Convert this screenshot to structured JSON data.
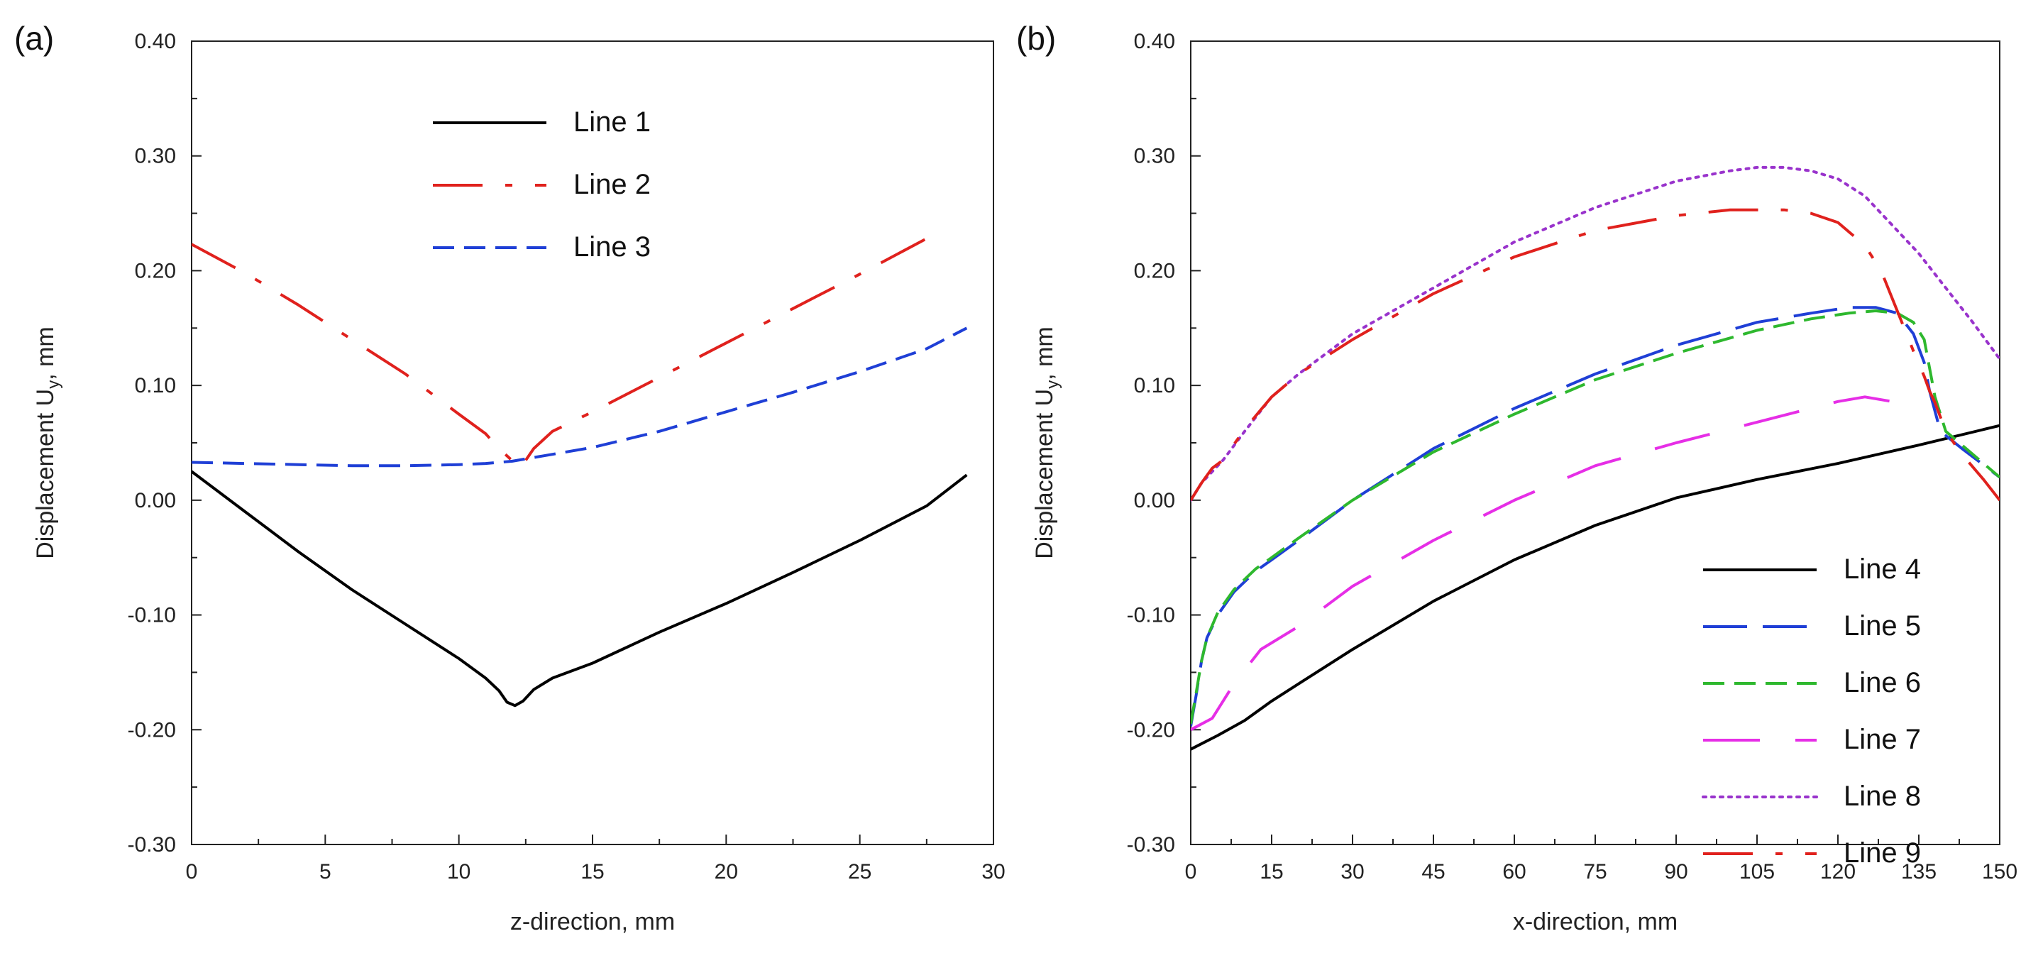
{
  "chart_data": [
    {
      "type": "line",
      "panel_label": "(a)",
      "xlabel": "z-direction, mm",
      "ylabel": "Displacement U",
      "ylabel_sub": "y",
      "ylabel_unit": ", mm",
      "xlim": [
        0,
        30
      ],
      "ylim": [
        -0.3,
        0.4
      ],
      "xticks": [
        0,
        5,
        10,
        15,
        20,
        25,
        30
      ],
      "xtick_labels": [
        "0",
        "5",
        "10",
        "15",
        "20",
        "25",
        "30"
      ],
      "yticks": [
        -0.3,
        -0.2,
        -0.1,
        0.0,
        0.1,
        0.2,
        0.3,
        0.4
      ],
      "ytick_labels": [
        "-0.30",
        "-0.20",
        "-0.10",
        "0.00",
        "0.10",
        "0.20",
        "0.30",
        "0.40"
      ],
      "grid": false,
      "legend_position": "top-center",
      "series": [
        {
          "name": "Line 1",
          "color": "#000000",
          "dash": "solid",
          "x": [
            0,
            2,
            4,
            6,
            8,
            10,
            11,
            11.5,
            11.8,
            12.1,
            12.4,
            12.8,
            13.5,
            15,
            17.5,
            20,
            22.5,
            25,
            27.5,
            29
          ],
          "y": [
            0.025,
            -0.01,
            -0.045,
            -0.078,
            -0.108,
            -0.138,
            -0.155,
            -0.166,
            -0.176,
            -0.179,
            -0.175,
            -0.165,
            -0.155,
            -0.142,
            -0.115,
            -0.09,
            -0.063,
            -0.035,
            -0.005,
            0.022
          ]
        },
        {
          "name": "Line 2",
          "color": "#e0211d",
          "dash": "long-dash-dot",
          "x": [
            0,
            2,
            4,
            6,
            8,
            10,
            11,
            11.5,
            12.3,
            12.8,
            13.5,
            15,
            17.5,
            20,
            22.5,
            25,
            27.5
          ],
          "y": [
            0.223,
            0.198,
            0.17,
            0.14,
            0.11,
            0.075,
            0.058,
            0.045,
            0.028,
            0.045,
            0.06,
            0.077,
            0.107,
            0.137,
            0.167,
            0.197,
            0.228
          ]
        },
        {
          "name": "Line 3",
          "color": "#1f3fd6",
          "dash": "dash",
          "x": [
            0,
            2,
            4,
            6,
            8,
            10,
            11,
            12,
            13,
            15,
            17.5,
            20,
            22.5,
            25,
            27.5,
            29
          ],
          "y": [
            0.033,
            0.032,
            0.031,
            0.03,
            0.03,
            0.031,
            0.032,
            0.034,
            0.038,
            0.046,
            0.06,
            0.077,
            0.094,
            0.112,
            0.132,
            0.15
          ]
        }
      ]
    },
    {
      "type": "line",
      "panel_label": "(b)",
      "xlabel": "x-direction, mm",
      "ylabel": "Displacement U",
      "ylabel_sub": "y",
      "ylabel_unit": ", mm",
      "xlim": [
        0,
        150
      ],
      "ylim": [
        -0.3,
        0.4
      ],
      "xticks": [
        0,
        15,
        30,
        45,
        60,
        75,
        90,
        105,
        120,
        135,
        150
      ],
      "xtick_labels": [
        "0",
        "15",
        "30",
        "45",
        "60",
        "75",
        "90",
        "105",
        "120",
        "135",
        "150"
      ],
      "yticks": [
        -0.3,
        -0.2,
        -0.1,
        0.0,
        0.1,
        0.2,
        0.3,
        0.4
      ],
      "ytick_labels": [
        "-0.30",
        "-0.20",
        "-0.10",
        "0.00",
        "0.10",
        "0.20",
        "0.30",
        "0.40"
      ],
      "grid": false,
      "legend_position": "bottom-right",
      "series": [
        {
          "name": "Line 4",
          "color": "#000000",
          "dash": "solid",
          "x": [
            0,
            5,
            10,
            15,
            20,
            30,
            45,
            60,
            75,
            90,
            105,
            120,
            135,
            150
          ],
          "y": [
            -0.217,
            -0.205,
            -0.192,
            -0.175,
            -0.16,
            -0.13,
            -0.088,
            -0.052,
            -0.022,
            0.002,
            0.018,
            0.032,
            0.048,
            0.065
          ]
        },
        {
          "name": "Line 5",
          "color": "#1f3fd6",
          "dash": "long-dash",
          "x": [
            0,
            1,
            2,
            3,
            5,
            8,
            12,
            15,
            20,
            30,
            45,
            60,
            75,
            90,
            105,
            115,
            122,
            127,
            131,
            134,
            136,
            137,
            139,
            143,
            150
          ],
          "y": [
            -0.197,
            -0.17,
            -0.14,
            -0.12,
            -0.1,
            -0.08,
            -0.062,
            -0.052,
            -0.035,
            0.0,
            0.045,
            0.08,
            0.11,
            0.135,
            0.155,
            0.163,
            0.168,
            0.168,
            0.163,
            0.145,
            0.12,
            0.095,
            0.06,
            0.045,
            0.02
          ]
        },
        {
          "name": "Line 6",
          "color": "#2eb82e",
          "dash": "dash",
          "x": [
            0,
            1,
            2,
            3,
            5,
            8,
            12,
            15,
            20,
            30,
            45,
            60,
            75,
            90,
            105,
            115,
            122,
            127,
            131,
            134,
            136,
            137,
            138,
            140,
            150
          ],
          "y": [
            -0.195,
            -0.168,
            -0.14,
            -0.12,
            -0.098,
            -0.078,
            -0.06,
            -0.05,
            -0.033,
            0.0,
            0.042,
            0.075,
            0.105,
            0.128,
            0.148,
            0.158,
            0.163,
            0.165,
            0.163,
            0.155,
            0.14,
            0.115,
            0.09,
            0.06,
            0.02
          ]
        },
        {
          "name": "Line 7",
          "color": "#e62ee6",
          "dash": "long-dash-gap",
          "x": [
            0,
            2,
            4,
            6,
            8,
            10,
            13,
            20,
            30,
            45,
            60,
            75,
            90,
            105,
            115,
            120,
            125,
            130
          ],
          "y": [
            -0.2,
            -0.195,
            -0.19,
            -0.175,
            -0.16,
            -0.148,
            -0.13,
            -0.11,
            -0.075,
            -0.035,
            0.0,
            0.03,
            0.05,
            0.068,
            0.08,
            0.086,
            0.09,
            0.086
          ]
        },
        {
          "name": "Line 8",
          "color": "#9933cc",
          "dash": "dot",
          "x": [
            0,
            2,
            4,
            6,
            10,
            15,
            20,
            30,
            45,
            60,
            75,
            90,
            100,
            105,
            110,
            115,
            120,
            125,
            130,
            135,
            140,
            145,
            150
          ],
          "y": [
            0.0,
            0.015,
            0.025,
            0.035,
            0.06,
            0.09,
            0.11,
            0.145,
            0.185,
            0.225,
            0.255,
            0.278,
            0.287,
            0.29,
            0.29,
            0.287,
            0.28,
            0.265,
            0.24,
            0.215,
            0.185,
            0.155,
            0.123
          ]
        },
        {
          "name": "Line 9",
          "color": "#e0211d",
          "dash": "long-dash-dot",
          "x": [
            0,
            2,
            4,
            6,
            10,
            15,
            20,
            30,
            45,
            60,
            75,
            90,
            100,
            110,
            115,
            120,
            125,
            128,
            131,
            134,
            136,
            137,
            138,
            140,
            143,
            147,
            150
          ],
          "y": [
            0.0,
            0.015,
            0.028,
            0.035,
            0.062,
            0.09,
            0.11,
            0.14,
            0.18,
            0.212,
            0.235,
            0.248,
            0.253,
            0.253,
            0.25,
            0.242,
            0.222,
            0.2,
            0.165,
            0.13,
            0.108,
            0.095,
            0.085,
            0.06,
            0.04,
            0.018,
            0.0
          ]
        }
      ]
    }
  ]
}
